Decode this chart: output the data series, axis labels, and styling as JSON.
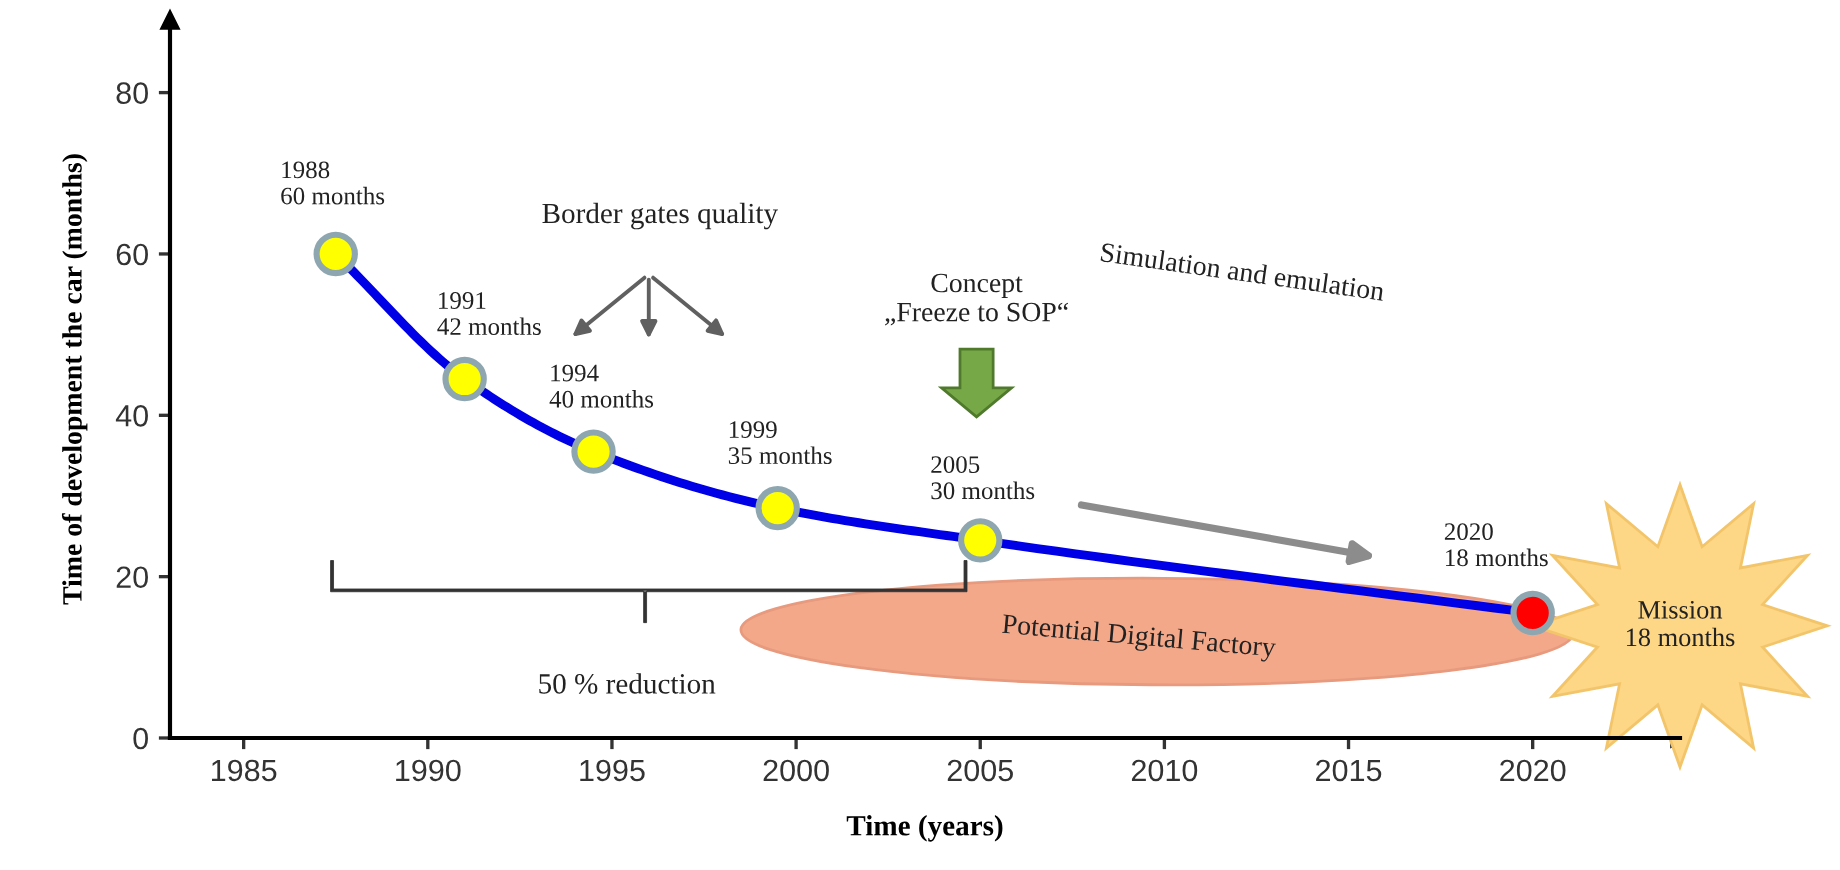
{
  "chart_data": {
    "type": "line",
    "xlabel": "Time (years)",
    "ylabel": "Time of development the car (months)",
    "x": [
      1987.5,
      1991,
      1994.5,
      1999.5,
      2005,
      2020
    ],
    "series": [
      {
        "color": "#0000e6",
        "colors": [
          "#ffff00",
          "#ffff00",
          "#ffff00",
          "#ffff00",
          "#ffff00",
          "#ff0000"
        ],
        "values": [
          60,
          44.5,
          35.5,
          28.5,
          24.5,
          15.5
        ]
      }
    ],
    "marker": "circle",
    "xlim": [
      1983,
      2024
    ],
    "ylim": [
      0,
      89
    ],
    "xticks": [
      1985,
      1990,
      1995,
      2000,
      2005,
      2010,
      2015,
      2020
    ],
    "yticks": [
      0,
      20,
      40,
      60,
      80
    ],
    "annotations": [
      {
        "text": "1988\n60 months",
        "x": 1987.5,
        "y": 60
      },
      {
        "text": "1991\n42 months",
        "x": 1991,
        "y": 44.5
      },
      {
        "text": "1994\n40 months",
        "x": 1994.5,
        "y": 35.5
      },
      {
        "text": "1999\n35 months",
        "x": 1999.5,
        "y": 28.5
      },
      {
        "text": "2005\n30 months",
        "x": 2005,
        "y": 24.5
      },
      {
        "text": "2020\n18 months",
        "x": 2020,
        "y": 15.5
      },
      "Border gates quality",
      "Concept\n„Freeze to SOP“",
      "Simulation and emulation",
      "Potential Digital Factory",
      "50 % reduction",
      "Mission\n18 months"
    ]
  }
}
